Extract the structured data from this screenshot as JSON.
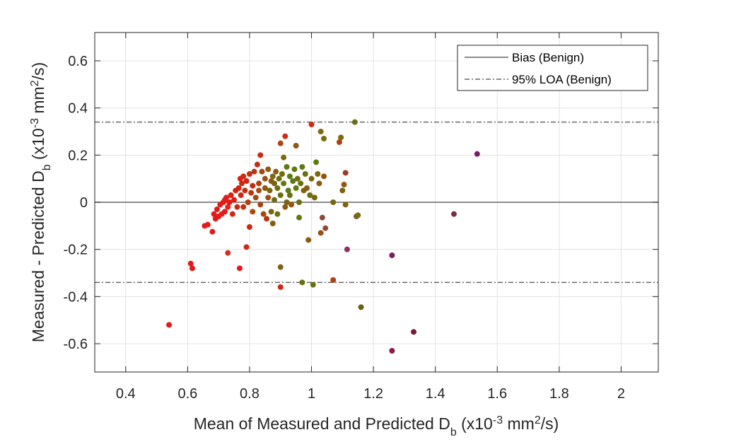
{
  "chart_data": {
    "type": "scatter",
    "xlabel": {
      "pre": "Mean of Measured and Predicted D",
      "sub": "b",
      "mid": " (x10",
      "sup": "-3",
      "mid2": " mm",
      "sup2": "2",
      "post": "/s)"
    },
    "ylabel": {
      "pre": "Measured - Predicted D",
      "sub": "b",
      "mid": " (x10",
      "sup": "-3",
      "mid2": " mm",
      "sup2": "2",
      "post": "/s)"
    },
    "xlim": [
      0.3,
      2.12
    ],
    "ylim": [
      -0.72,
      0.72
    ],
    "xticks": [
      0.4,
      0.6,
      0.8,
      1.0,
      1.2,
      1.4,
      1.6,
      1.8,
      2.0
    ],
    "xtick_labels": [
      "0.4",
      "0.6",
      "0.8",
      "1",
      "1.2",
      "1.4",
      "1.6",
      "1.8",
      "2"
    ],
    "yticks": [
      -0.6,
      -0.4,
      -0.2,
      0,
      0.2,
      0.4,
      0.6
    ],
    "ytick_labels": [
      "-0.6",
      "-0.4",
      "-0.2",
      "0",
      "0.2",
      "0.4",
      "0.6"
    ],
    "grid": true,
    "legend_position": "top-right",
    "bias": 0,
    "loa": [
      -0.34,
      0.34
    ],
    "legend": [
      {
        "label": "Bias (Benign)",
        "style": "solid",
        "color": "#666666"
      },
      {
        "label": "95% LOA (Benign)",
        "style": "dashdot",
        "color": "#666666"
      }
    ],
    "points": [
      [
        0.54,
        -0.52,
        "#e41a1a"
      ],
      [
        0.61,
        -0.26,
        "#e41a1a"
      ],
      [
        0.615,
        -0.28,
        "#e41a1a"
      ],
      [
        0.655,
        -0.1,
        "#e41a1a"
      ],
      [
        0.665,
        -0.095,
        "#e41a1a"
      ],
      [
        0.68,
        -0.125,
        "#e41a1a"
      ],
      [
        0.685,
        -0.05,
        "#e41a1a"
      ],
      [
        0.69,
        -0.07,
        "#e41a1a"
      ],
      [
        0.695,
        -0.03,
        "#e41a1a"
      ],
      [
        0.7,
        -0.06,
        "#e41a1a"
      ],
      [
        0.705,
        -0.01,
        "#e41a1a"
      ],
      [
        0.71,
        -0.05,
        "#e42020"
      ],
      [
        0.715,
        0.0,
        "#e41a1a"
      ],
      [
        0.72,
        0.01,
        "#e41a1a"
      ],
      [
        0.72,
        -0.04,
        "#e41a1a"
      ],
      [
        0.725,
        0.02,
        "#e01c1c"
      ],
      [
        0.73,
        -0.02,
        "#df2212"
      ],
      [
        0.73,
        -0.215,
        "#cc3322"
      ],
      [
        0.735,
        0.0,
        "#e41a1a"
      ],
      [
        0.74,
        0.03,
        "#dd2011"
      ],
      [
        0.745,
        -0.05,
        "#cc2a15"
      ],
      [
        0.75,
        0.01,
        "#d42211"
      ],
      [
        0.755,
        0.05,
        "#d42211"
      ],
      [
        0.76,
        -0.02,
        "#c82a12"
      ],
      [
        0.765,
        0.06,
        "#d02511"
      ],
      [
        0.768,
        -0.28,
        "#e41a1a"
      ],
      [
        0.77,
        0.1,
        "#dd2011"
      ],
      [
        0.772,
        0.03,
        "#c82a12"
      ],
      [
        0.775,
        0.08,
        "#c42f12"
      ],
      [
        0.78,
        0.11,
        "#cc2a15"
      ],
      [
        0.78,
        -0.02,
        "#b83512"
      ],
      [
        0.785,
        0.05,
        "#c03010"
      ],
      [
        0.79,
        0.09,
        "#d02511"
      ],
      [
        0.79,
        -0.19,
        "#cc2a15"
      ],
      [
        0.795,
        0.0,
        "#b04010"
      ],
      [
        0.8,
        -0.105,
        "#cc2a15"
      ],
      [
        0.8,
        0.12,
        "#c42f12"
      ],
      [
        0.805,
        0.04,
        "#b83512"
      ],
      [
        0.81,
        0.07,
        "#c03010"
      ],
      [
        0.81,
        -0.04,
        "#a84a10"
      ],
      [
        0.815,
        0.13,
        "#b83512"
      ],
      [
        0.82,
        0.02,
        "#a04a12"
      ],
      [
        0.825,
        0.16,
        "#c03010"
      ],
      [
        0.83,
        0.05,
        "#a84a10"
      ],
      [
        0.83,
        0.08,
        "#b04010"
      ],
      [
        0.835,
        0.2,
        "#cc2a15"
      ],
      [
        0.835,
        -0.01,
        "#b04010"
      ],
      [
        0.84,
        0.13,
        "#a04a12"
      ],
      [
        0.845,
        -0.05,
        "#a04a12"
      ],
      [
        0.85,
        0.1,
        "#9a5010"
      ],
      [
        0.85,
        0.06,
        "#8c5a12"
      ],
      [
        0.855,
        -0.07,
        "#b83512"
      ],
      [
        0.86,
        0.14,
        "#8c5a12"
      ],
      [
        0.86,
        0.02,
        "#9a5010"
      ],
      [
        0.865,
        0.05,
        "#7a6410"
      ],
      [
        0.87,
        0.09,
        "#8c5a12"
      ],
      [
        0.87,
        -0.04,
        "#7a6410"
      ],
      [
        0.875,
        0.11,
        "#7a6a10"
      ],
      [
        0.875,
        -0.09,
        "#8c5a12"
      ],
      [
        0.88,
        0.08,
        "#7a6410"
      ],
      [
        0.88,
        0.01,
        "#706a10"
      ],
      [
        0.885,
        0.13,
        "#8c5a12"
      ],
      [
        0.89,
        0.06,
        "#6a7010"
      ],
      [
        0.89,
        -0.05,
        "#6a7010"
      ],
      [
        0.895,
        0.1,
        "#6a7010"
      ],
      [
        0.9,
        0.03,
        "#6a7010"
      ],
      [
        0.9,
        0.25,
        "#b04010"
      ],
      [
        0.9,
        -0.275,
        "#7a6410"
      ],
      [
        0.9,
        -0.36,
        "#cc2a15"
      ],
      [
        0.905,
        0.12,
        "#6a7010"
      ],
      [
        0.91,
        0.19,
        "#7a6a10"
      ],
      [
        0.91,
        0.08,
        "#5f7a10"
      ],
      [
        0.915,
        0.28,
        "#cc2a15"
      ],
      [
        0.915,
        -0.02,
        "#8c5a12"
      ],
      [
        0.92,
        0.0,
        "#7a6410"
      ],
      [
        0.92,
        0.15,
        "#5f7a10"
      ],
      [
        0.925,
        0.05,
        "#5f7a10"
      ],
      [
        0.93,
        0.11,
        "#5f7a10"
      ],
      [
        0.93,
        0.03,
        "#6a7010"
      ],
      [
        0.935,
        -0.01,
        "#8c5a12"
      ],
      [
        0.94,
        0.09,
        "#5f7a10"
      ],
      [
        0.945,
        0.14,
        "#5f7a10"
      ],
      [
        0.95,
        0.24,
        "#8c5a12"
      ],
      [
        0.95,
        0.06,
        "#5f7a10"
      ],
      [
        0.955,
        0.1,
        "#6a7010"
      ],
      [
        0.96,
        0.0,
        "#6a7010"
      ],
      [
        0.96,
        -0.065,
        "#5f7a10"
      ],
      [
        0.965,
        0.08,
        "#6a7010"
      ],
      [
        0.97,
        0.15,
        "#5f7a10"
      ],
      [
        0.97,
        -0.34,
        "#6a7010"
      ],
      [
        0.975,
        0.05,
        "#7a6410"
      ],
      [
        0.98,
        0.12,
        "#6a7010"
      ],
      [
        0.985,
        0.06,
        "#8c5a12"
      ],
      [
        0.99,
        -0.16,
        "#8c5a12"
      ],
      [
        0.995,
        0.03,
        "#6a7010"
      ],
      [
        1.0,
        0.33,
        "#cc2a15"
      ],
      [
        1.0,
        0.1,
        "#7a6410"
      ],
      [
        1.005,
        -0.35,
        "#6a7010"
      ],
      [
        1.01,
        0.02,
        "#7a6410"
      ],
      [
        1.015,
        0.17,
        "#5f7a10"
      ],
      [
        1.02,
        0.12,
        "#7a6a10"
      ],
      [
        1.025,
        0.08,
        "#8c5a12"
      ],
      [
        1.03,
        -0.13,
        "#9a5010"
      ],
      [
        1.03,
        0.3,
        "#7a6a10"
      ],
      [
        1.035,
        -0.065,
        "#8c4a3a"
      ],
      [
        1.04,
        0.27,
        "#7a6a10"
      ],
      [
        1.04,
        0.11,
        "#9a5010"
      ],
      [
        1.045,
        -0.11,
        "#8c4a3a"
      ],
      [
        1.07,
        0.0,
        "#7a6410"
      ],
      [
        1.07,
        -0.33,
        "#b04010"
      ],
      [
        1.09,
        0.255,
        "#b04010"
      ],
      [
        1.095,
        0.275,
        "#7a6a10"
      ],
      [
        1.1,
        0.05,
        "#7a6410"
      ],
      [
        1.105,
        0.075,
        "#8c5a12"
      ],
      [
        1.11,
        0.125,
        "#9a3a2a"
      ],
      [
        1.11,
        -0.01,
        "#7a6410"
      ],
      [
        1.115,
        -0.2,
        "#8c3060"
      ],
      [
        1.14,
        0.34,
        "#6a7010"
      ],
      [
        1.145,
        -0.06,
        "#7a5a3a"
      ],
      [
        1.15,
        -0.055,
        "#7a6a10"
      ],
      [
        1.16,
        -0.445,
        "#6a6010"
      ],
      [
        1.26,
        -0.225,
        "#7a2060"
      ],
      [
        1.26,
        -0.63,
        "#8c1a4a"
      ],
      [
        1.33,
        -0.55,
        "#7a1a3a"
      ],
      [
        1.46,
        -0.05,
        "#7a2a4a"
      ],
      [
        1.535,
        0.205,
        "#7a1a6a"
      ]
    ]
  }
}
